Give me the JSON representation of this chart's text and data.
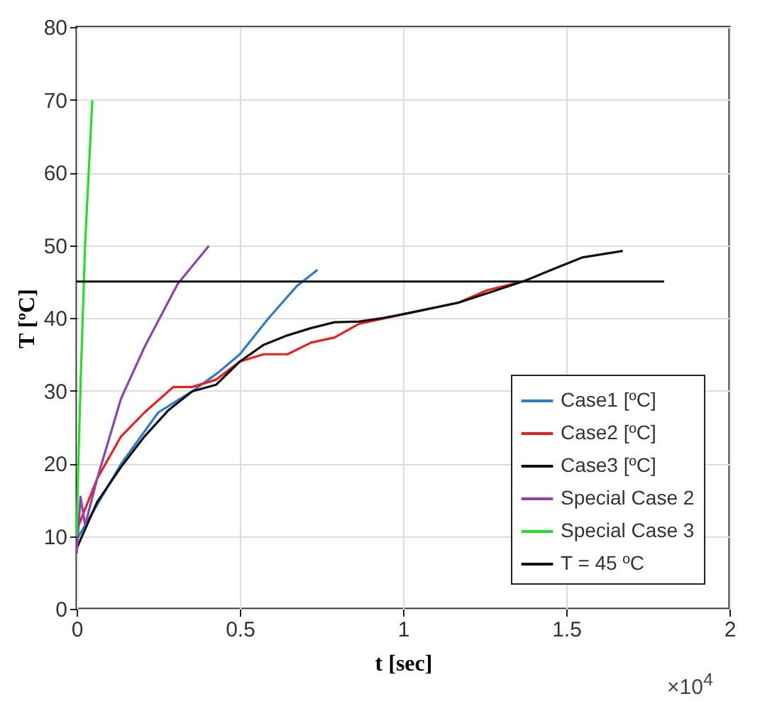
{
  "chart_data": {
    "type": "line",
    "xlabel": "t [sec]",
    "ylabel": "T [ºC]",
    "xlim": [
      0,
      2
    ],
    "xticks": [
      0,
      0.5,
      1,
      1.5,
      2
    ],
    "ylim": [
      0,
      80
    ],
    "yticks": [
      0,
      10,
      20,
      30,
      40,
      50,
      60,
      70,
      80
    ],
    "grid": true,
    "legend": "bottom right",
    "annotations": [
      "×10$^{4}$"
    ],
    "series": [
      {
        "name": "Case1 [ºC]",
        "color": "#2b7bd0",
        "x": [
          0,
          0.136,
          0.25,
          0.354,
          0.434,
          0.5,
          0.587,
          0.675,
          0.738
        ],
        "values": [
          9.5,
          19.9,
          27,
          29.9,
          32.5,
          35,
          39.9,
          44.4,
          46.6
        ]
      },
      {
        "name": "Case2 [ºC]",
        "color": "#e8201e",
        "x": [
          0,
          0.063,
          0.136,
          0.208,
          0.296,
          0.354,
          0.427,
          0.5,
          0.573,
          0.646,
          0.718,
          0.79,
          0.866,
          0.94,
          1.01,
          1.17,
          1.258,
          1.373
        ],
        "values": [
          10.8,
          17.9,
          23.7,
          27,
          30.5,
          30.5,
          31.5,
          34,
          35,
          35,
          36.6,
          37.3,
          39.2,
          39.9,
          40.6,
          42.1,
          43.8,
          45.1
        ]
      },
      {
        "name": "Case3 [ºC]",
        "color": "#111111",
        "x": [
          0,
          0.063,
          0.136,
          0.208,
          0.281,
          0.354,
          0.427,
          0.5,
          0.573,
          0.646,
          0.718,
          0.79,
          0.866,
          0.94,
          1.01,
          1.17,
          1.258,
          1.373,
          1.46,
          1.548,
          1.673
        ],
        "values": [
          8.3,
          14.7,
          19.5,
          23.7,
          27.3,
          29.9,
          30.8,
          34,
          36.3,
          37.6,
          38.6,
          39.4,
          39.5,
          40,
          40.6,
          42.1,
          43.4,
          45.1,
          46.7,
          48.3,
          49.2
        ]
      },
      {
        "name": "Special Case 2",
        "color": "#8e44ad",
        "x": [
          0,
          0.012,
          0.026,
          0.063,
          0.136,
          0.208,
          0.31,
          0.405
        ],
        "values": [
          7.6,
          15.4,
          11.5,
          17.9,
          28.9,
          36,
          44.7,
          49.9
        ]
      },
      {
        "name": "Special Case 3",
        "color": "#22e022",
        "x": [
          0,
          0.004,
          0.012,
          0.026,
          0.048
        ],
        "values": [
          10,
          17.9,
          30.8,
          50.2,
          69.9
        ]
      },
      {
        "name": "T = 45 ºC",
        "color": "#111111",
        "x": [
          0,
          1.8
        ],
        "values": [
          45,
          45
        ]
      }
    ]
  }
}
